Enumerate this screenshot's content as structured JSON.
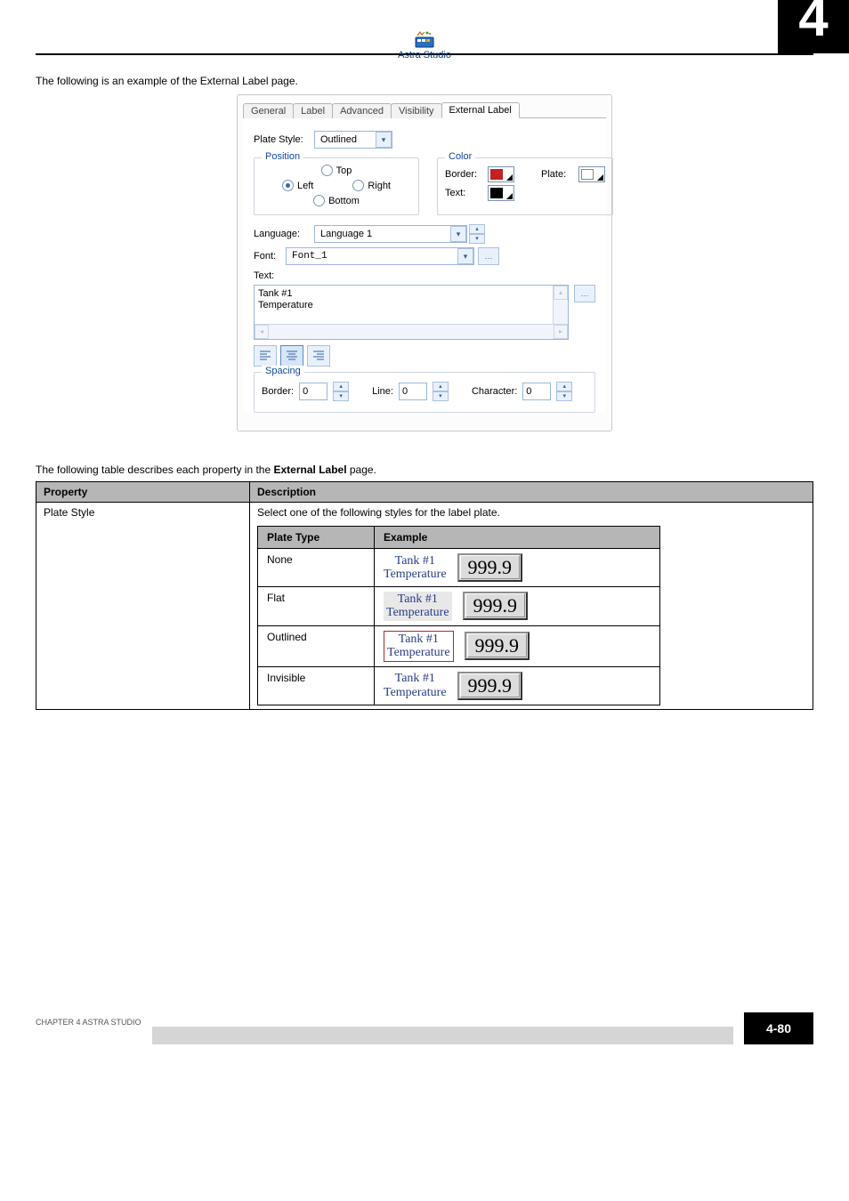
{
  "header": {
    "chapter": "4",
    "chapter_text": "Astra Studio",
    "page_num": "4-80",
    "footnote": "CHAPTER 4   ASTRA STUDIO"
  },
  "intro": "The following is an example of the External Label page.",
  "dialog": {
    "tabs": [
      "General",
      "Label",
      "Advanced",
      "Visibility",
      "External Label"
    ],
    "active_tab": 4,
    "plate_style": {
      "label": "Plate Style:",
      "value": "Outlined"
    },
    "position": {
      "legend": "Position",
      "options": {
        "top": "Top",
        "left": "Left",
        "right": "Right",
        "bottom": "Bottom"
      },
      "selected": "left"
    },
    "color": {
      "legend": "Color",
      "border_label": "Border:",
      "border_color": "#c32020",
      "plate_label": "Plate:",
      "plate_color": "#ffffff",
      "text_label": "Text:",
      "text_color": "#000000"
    },
    "language": {
      "label": "Language:",
      "value": "Language 1"
    },
    "font": {
      "label": "Font:",
      "value": "Font_1"
    },
    "text": {
      "label": "Text:",
      "content": "Tank #1\nTemperature"
    },
    "align": {
      "selected": "center"
    },
    "spacing": {
      "legend": "Spacing",
      "border_label": "Border:",
      "border_value": "0",
      "line_label": "Line:",
      "line_value": "0",
      "char_label": "Character:",
      "char_value": "0"
    }
  },
  "table": {
    "header": {
      "property": "Property",
      "description": "Description"
    },
    "row1": {
      "property": "Plate Style",
      "desc_intro": "Select one of the following styles for the label plate.",
      "sub_header": {
        "type": "Plate Type",
        "example": "Example"
      },
      "rows": [
        {
          "type": "None",
          "label1": "Tank #1",
          "label2": "Temperature",
          "value": "999.9",
          "border": false,
          "flat": false
        },
        {
          "type": "Flat",
          "label1": "Tank #1",
          "label2": "Temperature",
          "value": "999.9",
          "border": false,
          "flat": true
        },
        {
          "type": "Outlined",
          "label1": "Tank #1",
          "label2": "Temperature",
          "value": "999.9",
          "border": true,
          "flat": false
        },
        {
          "type": "Invisible",
          "label1": "Tank #1",
          "label2": "Temperature",
          "value": "999.9",
          "border": false,
          "flat": false
        }
      ]
    }
  }
}
